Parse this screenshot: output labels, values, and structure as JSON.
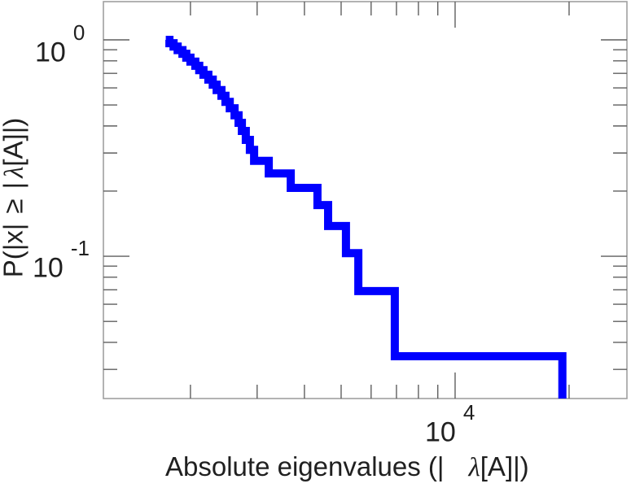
{
  "figure": {
    "background": "#ffffff",
    "frame_color": "#a0a0a0",
    "tick_color": "#5f5f5f",
    "text_color": "#202020"
  },
  "labels": {
    "xlabel_prefix": "Absolute eigenvalues (|",
    "xlabel_lambda": "λ",
    "xlabel_suffix": "[A]|)",
    "ylabel_prefix": "P(|x|",
    "ylabel_geq": "≥",
    "ylabel_bar": "|",
    "ylabel_lambda": "λ",
    "ylabel_suffix": "[A]|)"
  },
  "chart_data": {
    "type": "line",
    "subtype": "step-ccdf",
    "title": "",
    "xlabel": "Absolute eigenvalues (| λ[A]|)",
    "ylabel": "P(|x| ≥ |λ[A]|)",
    "x_scale": "log",
    "y_scale": "log",
    "xlim": [
      1178,
      28430
    ],
    "ylim": [
      0.022,
      1.502
    ],
    "grid": false,
    "legend": "none",
    "x_major_ticks": [
      {
        "value": 10000,
        "base": "10",
        "exp": "4"
      }
    ],
    "x_minor_ticks": [
      2000,
      3000,
      4000,
      5000,
      6000,
      7000,
      8000,
      9000,
      20000
    ],
    "y_major_ticks": [
      {
        "value": 1,
        "base": "10",
        "exp": "0"
      },
      {
        "value": 0.1,
        "base": "10",
        "exp": "-1"
      }
    ],
    "y_minor_ticks": [
      0.9,
      0.8,
      0.7,
      0.6,
      0.5,
      0.4,
      0.3,
      0.2,
      0.09,
      0.08,
      0.07,
      0.06,
      0.05,
      0.04,
      0.03
    ],
    "series": [
      {
        "name": "absolute-eigenvalue-ccdf",
        "color": "#0000ff",
        "line_width": 10,
        "n_samples": 29,
        "ccdf_start_probability": 1.0,
        "eigenvalues": [
          1760,
          1805,
          1850,
          1905,
          1950,
          2000,
          2060,
          2110,
          2165,
          2230,
          2290,
          2345,
          2415,
          2475,
          2540,
          2615,
          2680,
          2735,
          2800,
          2870,
          2945,
          3220,
          3680,
          4330,
          4620,
          5150,
          5550,
          6930,
          19200
        ],
        "probabilities_after_drop": [
          0.9655,
          0.931,
          0.8966,
          0.8621,
          0.8276,
          0.7931,
          0.7586,
          0.7241,
          0.6897,
          0.6552,
          0.6207,
          0.5862,
          0.5517,
          0.5172,
          0.4828,
          0.4483,
          0.4138,
          0.3793,
          0.3448,
          0.3103,
          0.2759,
          0.2414,
          0.2069,
          0.1724,
          0.1379,
          0.1034,
          0.069,
          0.0345,
          0
        ]
      }
    ]
  }
}
